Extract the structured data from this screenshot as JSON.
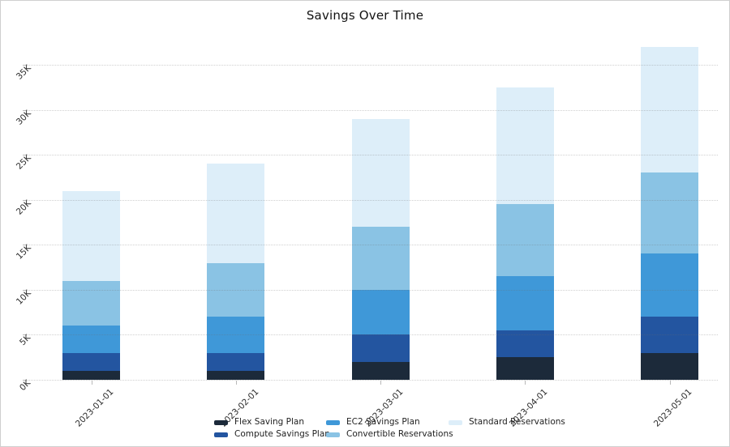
{
  "title": "Savings Over Time",
  "chart_data": {
    "type": "bar",
    "stacked": true,
    "title": "Savings Over Time",
    "xlabel": "",
    "ylabel": "",
    "categories": [
      "2023-01-01",
      "2023-02-01",
      "2023-03-01",
      "2023-04-01",
      "2023-05-01"
    ],
    "series": [
      {
        "name": "Flex Saving Plan",
        "color": "#1c2a3a",
        "values": [
          1000,
          1000,
          2000,
          2500,
          3000
        ]
      },
      {
        "name": "Compute Savings Plan",
        "color": "#2355a0",
        "values": [
          2000,
          2000,
          3000,
          3000,
          4000
        ]
      },
      {
        "name": "EC2 Savings Plan",
        "color": "#3f98d8",
        "values": [
          3000,
          4000,
          5000,
          6000,
          7000
        ]
      },
      {
        "name": "Convertible Reservations",
        "color": "#8ac3e4",
        "values": [
          5000,
          6000,
          7000,
          8000,
          9000
        ]
      },
      {
        "name": "Standard Reservations",
        "color": "#ddeef9",
        "values": [
          10000,
          11000,
          12000,
          13000,
          14000
        ]
      }
    ],
    "totals": [
      21000,
      24000,
      29000,
      32500,
      37000
    ],
    "ylim": [
      0,
      37000
    ],
    "ytick_values": [
      0,
      5000,
      10000,
      15000,
      20000,
      25000,
      30000,
      35000
    ],
    "ytick_labels": [
      "0K",
      "5K",
      "10K",
      "15K",
      "20K",
      "25K",
      "30K",
      "35K"
    ],
    "grid": true,
    "gridline_style": "dotted",
    "legend_position": "bottom",
    "tick_label_rotation_deg": 45
  },
  "legend": {
    "items": [
      "Flex Saving Plan",
      "Compute Savings Plan",
      "EC2 Savings Plan",
      "Convertible Reservations",
      "Standard Reservations"
    ]
  }
}
